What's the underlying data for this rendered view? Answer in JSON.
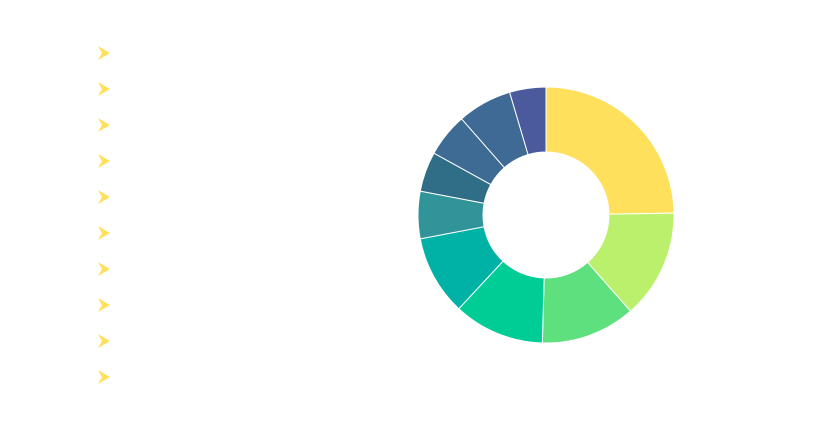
{
  "chart_data": {
    "type": "pie",
    "donut": true,
    "title": "",
    "categories": [
      "",
      "",
      "",
      "",
      "",
      "",
      "",
      "",
      "",
      ""
    ],
    "values": [
      27.0,
      15.0,
      13.0,
      12.5,
      11.0,
      6.5,
      5.5,
      6.0,
      7.5,
      5.0
    ],
    "colors": [
      "#FFE05C",
      "#BAF06B",
      "#5EE07F",
      "#00CC96",
      "#00B2A5",
      "#319498",
      "#2F6E86",
      "#3E6B94",
      "#3E6A95",
      "#4A5A9C"
    ],
    "legend": {
      "position": "left",
      "marker": "arrow",
      "marker_color": "#FFE05C"
    },
    "start_angle_deg": 0,
    "direction": "clockwise"
  }
}
